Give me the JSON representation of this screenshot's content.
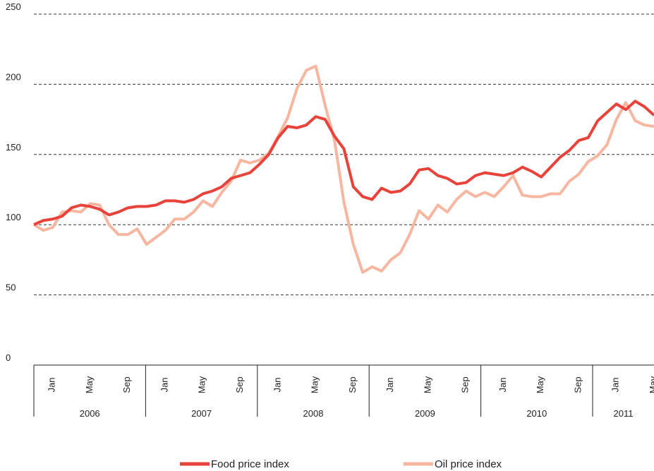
{
  "chart_data": {
    "type": "line",
    "categories": [
      null,
      null,
      "Jan",
      null,
      null,
      null,
      "May",
      null,
      null,
      null,
      "Sep",
      null,
      null,
      null,
      "Jan",
      null,
      null,
      null,
      "May",
      null,
      null,
      null,
      "Sep",
      null,
      null,
      null,
      "Jan",
      null,
      null,
      null,
      "May",
      null,
      null,
      null,
      "Sep",
      null,
      null,
      null,
      "Jan",
      null,
      null,
      null,
      "May",
      null,
      null,
      null,
      "Sep",
      null,
      null,
      null,
      "Jan",
      null,
      null,
      null,
      "May",
      null,
      null,
      null,
      "Sep",
      null,
      null,
      null,
      "Jan",
      null,
      null,
      null,
      "May"
    ],
    "years": [
      "2006",
      "2007",
      "2008",
      "2009",
      "2010",
      "2011"
    ],
    "series": [
      {
        "name": "Food price index",
        "color": "#e8433a",
        "values": [
          100,
          103,
          104,
          106,
          112,
          114,
          113,
          111,
          107,
          109,
          112,
          113,
          113,
          114,
          117,
          117,
          116,
          118,
          122,
          124,
          127,
          133,
          135,
          137,
          143,
          150,
          162,
          170,
          169,
          171,
          177,
          175,
          163,
          154,
          127,
          120,
          118,
          126,
          123,
          124,
          129,
          139,
          140,
          135,
          133,
          129,
          130,
          135,
          137,
          136,
          135,
          137,
          141,
          138,
          134,
          141,
          148,
          153,
          160,
          162,
          174,
          180,
          186,
          182,
          188,
          184,
          178
        ]
      },
      {
        "name": "Oil price index",
        "color": "#f7b6a0",
        "values": [
          100,
          96,
          98,
          109,
          110,
          109,
          115,
          114,
          100,
          93,
          93,
          97,
          86,
          91,
          96,
          104,
          104,
          109,
          117,
          113,
          123,
          131,
          146,
          144,
          146,
          151,
          163,
          176,
          197,
          210,
          213,
          185,
          160,
          116,
          86,
          66,
          70,
          67,
          75,
          80,
          93,
          110,
          104,
          114,
          109,
          118,
          124,
          120,
          123,
          120,
          127,
          135,
          121,
          120,
          120,
          122,
          122,
          131,
          136,
          145,
          149,
          157,
          175,
          187,
          174,
          171,
          170
        ]
      }
    ],
    "ylim": [
      0,
      250
    ],
    "yticks": [
      0,
      50,
      100,
      150,
      200,
      250
    ],
    "grid": true
  }
}
